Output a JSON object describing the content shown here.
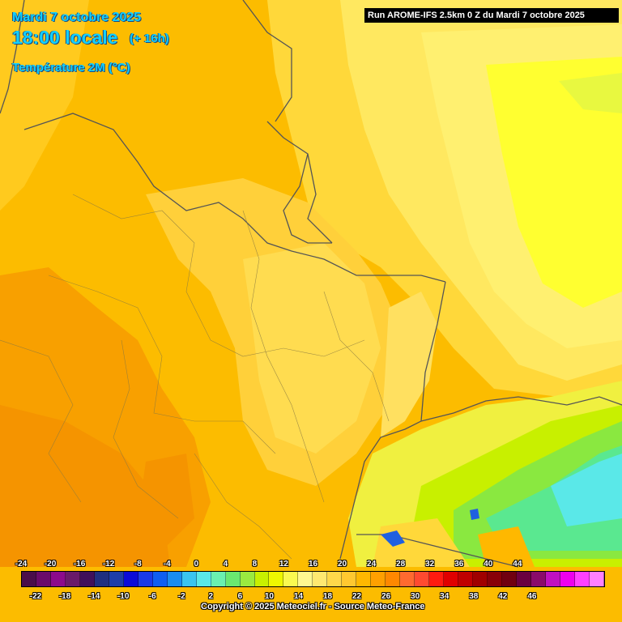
{
  "header": {
    "date": "Mardi 7 octobre 2025",
    "time": "18:00 locale",
    "offset": "(+ 16h)",
    "variable": "Température 2M (°C)"
  },
  "run_info": "Run AROME-IFS 2.5km 0 Z du Mardi 7 octobre 2025",
  "legend": {
    "top_ticks": [
      "-24",
      "-20",
      "-16",
      "-12",
      "-8",
      "-4",
      "0",
      "4",
      "8",
      "12",
      "16",
      "20",
      "24",
      "28",
      "32",
      "36",
      "40",
      "44"
    ],
    "bottom_ticks": [
      "-22",
      "-18",
      "-14",
      "-10",
      "-6",
      "-2",
      "2",
      "6",
      "10",
      "14",
      "18",
      "22",
      "26",
      "30",
      "34",
      "38",
      "42",
      "46"
    ],
    "colors": [
      "#4a0d4a",
      "#6a0a6a",
      "#8c0a8c",
      "#6a1a6a",
      "#40105a",
      "#1f2f7f",
      "#1d3da8",
      "#0b0bd8",
      "#1a3ae8",
      "#0f5ef0",
      "#1a8cf0",
      "#3ac4f0",
      "#5ae8e8",
      "#6af0b0",
      "#6ae870",
      "#9aea40",
      "#c8f000",
      "#eef800",
      "#fafa50",
      "#fff890",
      "#ffe870",
      "#ffd84a",
      "#ffc830",
      "#ffb800",
      "#ffa000",
      "#ff8800",
      "#ff6a30",
      "#ff4a30",
      "#ff1a10",
      "#e00000",
      "#c00000",
      "#a00000",
      "#880008",
      "#700010",
      "#6a0040",
      "#8a0a6a",
      "#c010c0",
      "#ee00ee",
      "#ff40ff",
      "#ff80ff"
    ]
  },
  "copyright": "Copyright © 2025 Meteociel.fr - Source Meteo-France"
}
